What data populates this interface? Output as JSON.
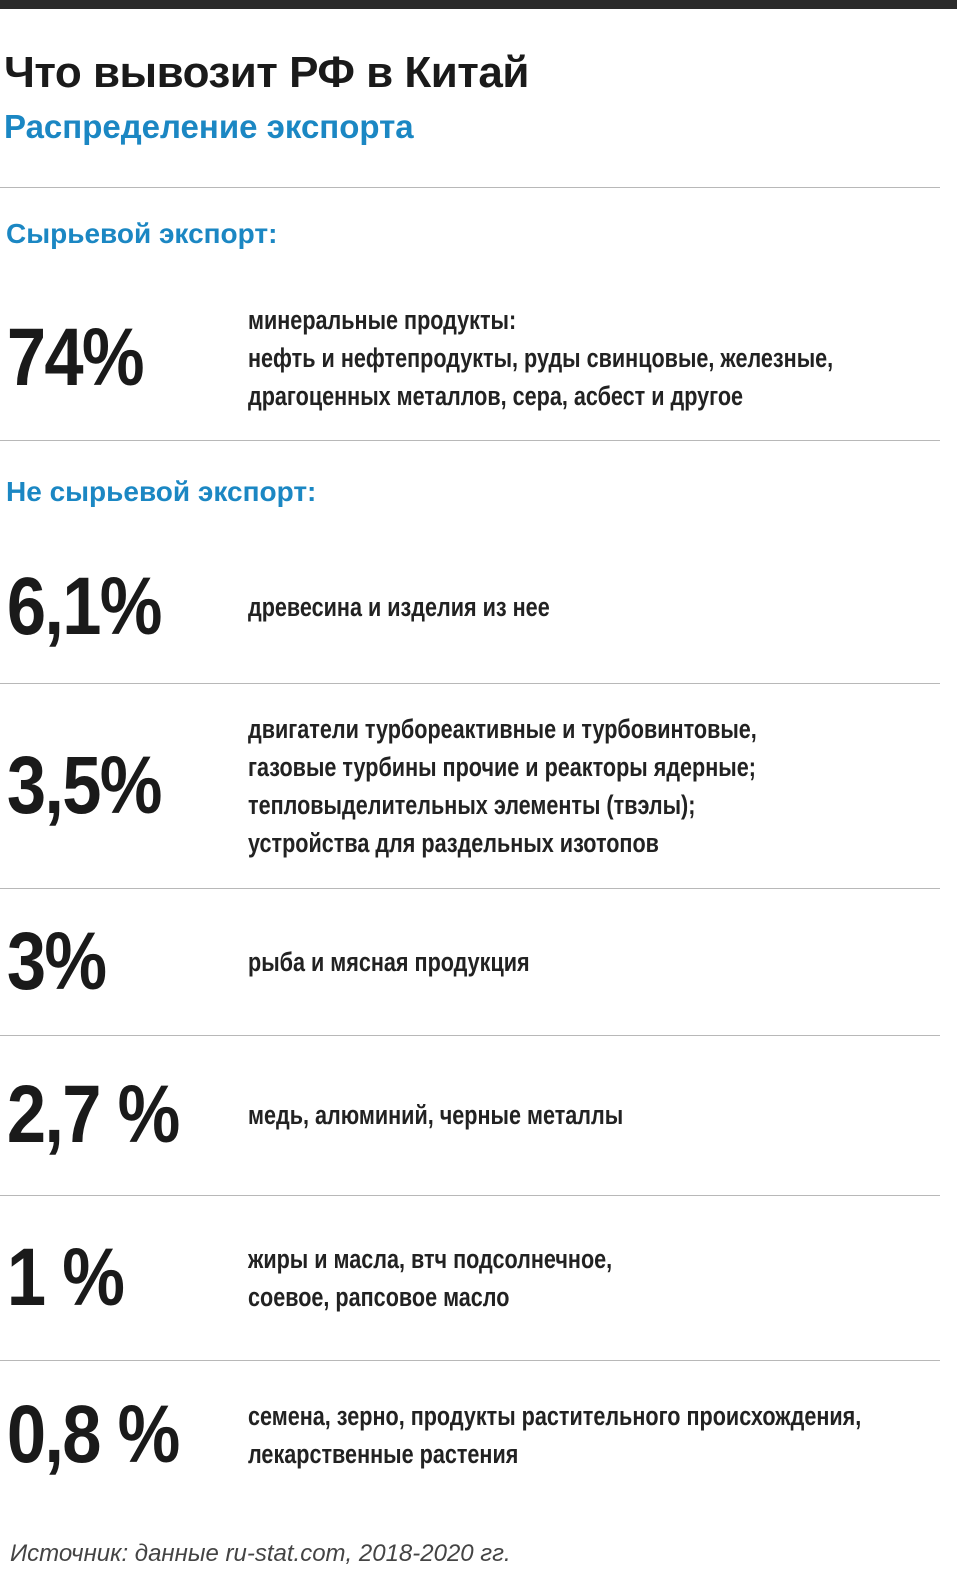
{
  "header": {
    "title": "Что вывозит РФ в Китай",
    "subtitle": "Распределение экспорта"
  },
  "sections": [
    {
      "heading": "Сырьевой экспорт:",
      "items": [
        {
          "value": "74%",
          "lines": [
            "минеральные продукты:",
            "нефть и нефтепродукты, руды свинцовые, железные,",
            "драгоценных металлов, сера, асбест и другое"
          ]
        }
      ]
    },
    {
      "heading": "Не сырьевой экспорт:",
      "items": [
        {
          "value": "6,1%",
          "lines": [
            "древесина и изделия из нее"
          ]
        },
        {
          "value": "3,5%",
          "lines": [
            "двигатели турбореактивные и турбовинтовые,",
            "газовые турбины прочие и реакторы ядерные;",
            "тепловыделительных элементы (твэлы);",
            "устройства для раздельных изотопов"
          ]
        },
        {
          "value": "3%",
          "lines": [
            "рыба и мясная продукция"
          ]
        },
        {
          "value": "2,7 %",
          "lines": [
            "медь, алюминий, черные металлы"
          ]
        },
        {
          "value": "1 %",
          "lines": [
            "жиры и масла, втч подсолнечное,",
            "соевое, рапсовое масло"
          ]
        },
        {
          "value": "0,8 %",
          "lines": [
            "семена, зерно, продукты растительного происхождения,",
            "лекарственные растения"
          ]
        }
      ]
    }
  ],
  "source": "Источник: данные ru-stat.com, 2018-2020 гг."
}
